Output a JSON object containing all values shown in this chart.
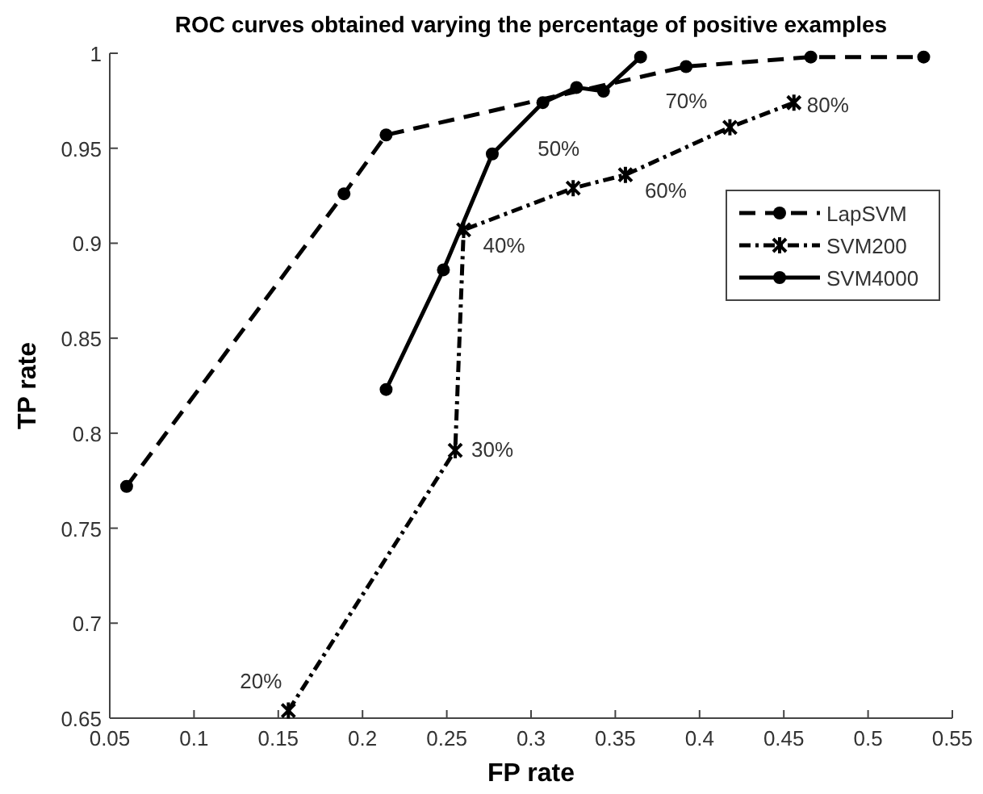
{
  "chart_data": {
    "type": "line",
    "title": "ROC curves obtained varying the percentage of positive examples",
    "xlabel": "FP rate",
    "ylabel": "TP rate",
    "xlim": [
      0.05,
      0.55
    ],
    "xticks": [
      0.05,
      0.1,
      0.15,
      0.2,
      0.25,
      0.3,
      0.35,
      0.4,
      0.45,
      0.5,
      0.55
    ],
    "ylim": [
      0.65,
      1
    ],
    "yticks": [
      0.65,
      0.7,
      0.75,
      0.8,
      0.85,
      0.9,
      0.95,
      1
    ],
    "grid": false,
    "legend": "top right",
    "series": [
      {
        "name": "LapSVM",
        "color": "#000000",
        "line_style": "dashed",
        "marker": "circle",
        "x": [
          0.06,
          0.189,
          0.214,
          0.392,
          0.466,
          0.533
        ],
        "values": [
          0.772,
          0.926,
          0.957,
          0.993,
          0.998,
          0.998
        ]
      },
      {
        "name": "SVM200",
        "color": "#000000",
        "line_style": "dotted",
        "marker": "cross",
        "x": [
          0.156,
          0.255,
          0.26,
          0.325,
          0.356,
          0.418,
          0.456
        ],
        "values": [
          0.654,
          0.791,
          0.907,
          0.929,
          0.936,
          0.961,
          0.974
        ]
      },
      {
        "name": "SVM4000",
        "color": "#000000",
        "line_style": "solid",
        "marker": "circle",
        "x": [
          0.214,
          0.248,
          0.277,
          0.307,
          0.327,
          0.343,
          0.365
        ],
        "values": [
          0.823,
          0.886,
          0.947,
          0.974,
          0.982,
          0.98,
          0.998
        ]
      }
    ],
    "annotations": [
      {
        "text": "20%",
        "x": 0.156,
        "y": 0.654
      },
      {
        "text": "30%",
        "x": 0.255,
        "y": 0.791
      },
      {
        "text": "40%",
        "x": 0.26,
        "y": 0.907
      },
      {
        "text": "50%",
        "x": 0.325,
        "y": 0.929
      },
      {
        "text": "60%",
        "x": 0.356,
        "y": 0.936
      },
      {
        "text": "70%",
        "x": 0.418,
        "y": 0.961
      },
      {
        "text": "80%",
        "x": 0.456,
        "y": 0.974
      }
    ]
  }
}
